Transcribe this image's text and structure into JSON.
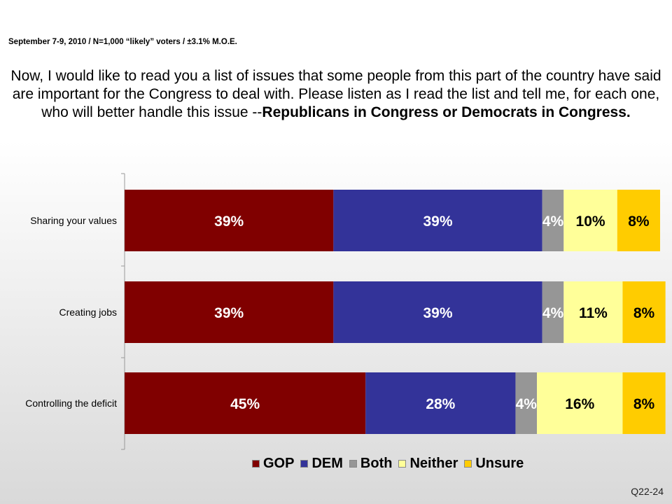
{
  "header": {
    "source": "September 7-9, 2010 / N=1,000 “likely” voters / ±3.1% M.O.E.",
    "question_plain": "Now, I would like to read you a list of issues that some people from this part of the country have said are important for the Congress to deal with.  Please listen as I read the list and tell me, for each one, who will better handle this issue --",
    "question_bold": "Republicans in Congress or Democrats in Congress."
  },
  "footer": {
    "code": "Q22-24"
  },
  "chart_data": {
    "type": "bar",
    "orientation": "horizontal",
    "stacked": true,
    "categories": [
      "Sharing your values",
      "Creating jobs",
      "Controlling the deficit"
    ],
    "series": [
      {
        "name": "GOP",
        "color": "#800000",
        "values": [
          39,
          39,
          45
        ]
      },
      {
        "name": "DEM",
        "color": "#333399",
        "values": [
          39,
          39,
          28
        ]
      },
      {
        "name": "Both",
        "color": "#969696",
        "values": [
          4,
          4,
          4
        ]
      },
      {
        "name": "Neither",
        "color": "#ffff99",
        "values": [
          10,
          11,
          16
        ]
      },
      {
        "name": "Unsure",
        "color": "#ffcc00",
        "values": [
          8,
          8,
          8
        ]
      }
    ],
    "data_labels": [
      [
        "39%",
        "39%",
        "4%",
        "10%",
        "8%"
      ],
      [
        "39%",
        "39%",
        "4%",
        "11%",
        "8%"
      ],
      [
        "45%",
        "28%",
        "4%",
        "16%",
        "8%"
      ]
    ],
    "label_colors": [
      "#ffffff",
      "#ffffff",
      "#ffffff",
      "#000000",
      "#000000"
    ],
    "legend_position": "bottom",
    "grid": false
  }
}
